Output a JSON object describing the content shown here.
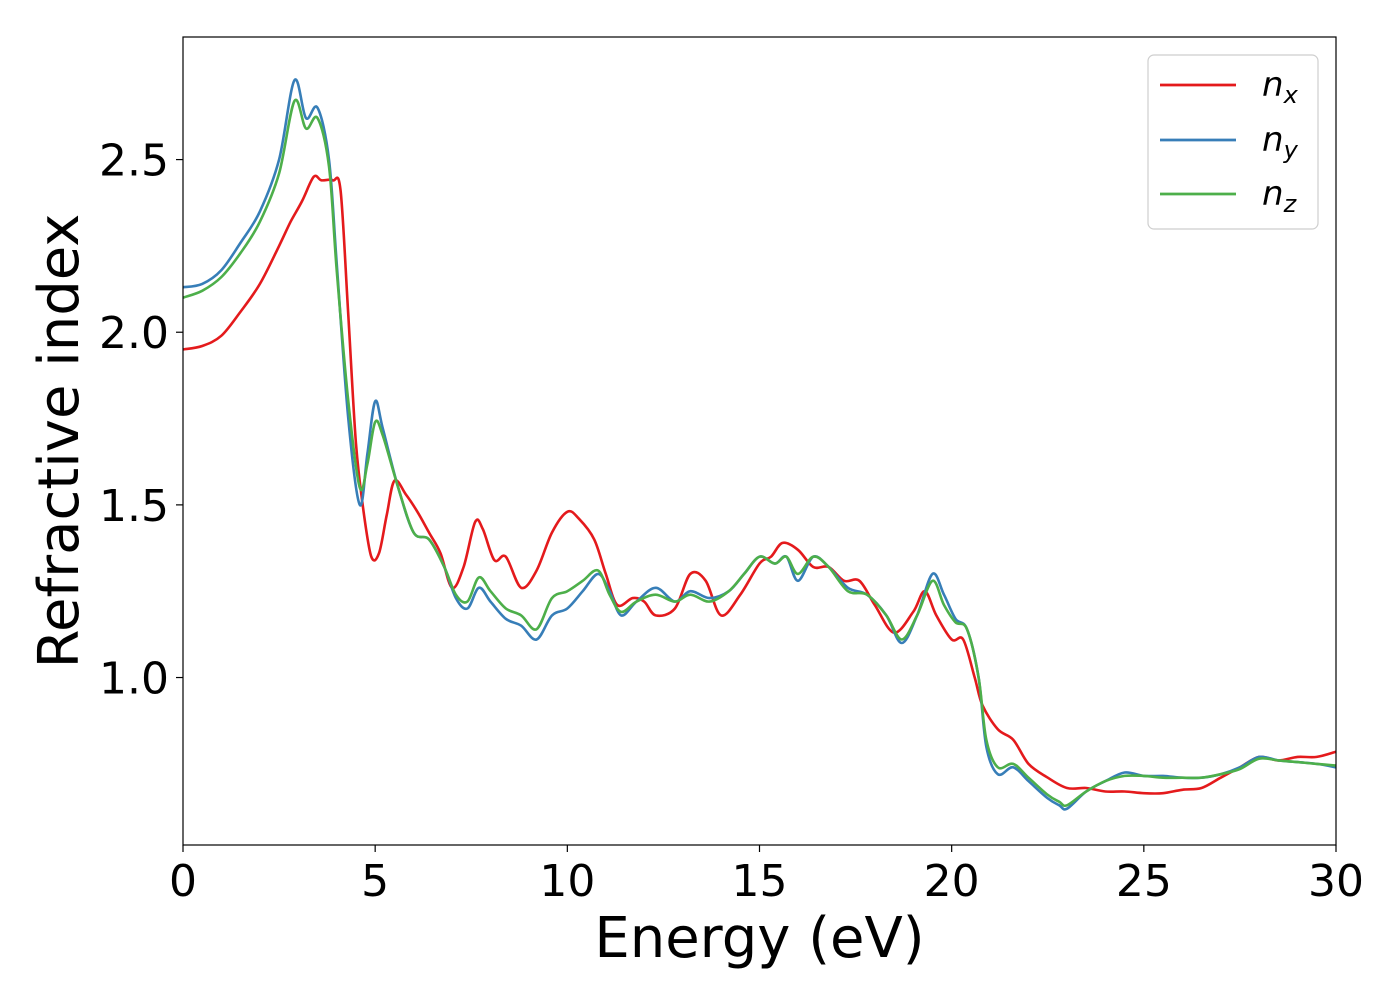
{
  "chart_data": {
    "type": "line",
    "xlabel": "Energy (eV)",
    "ylabel": "Refractive index",
    "xlim": [
      0,
      30
    ],
    "ylim": [
      0.515,
      2.855
    ],
    "x_ticks": [
      "0",
      "5",
      "10",
      "15",
      "20",
      "25",
      "30"
    ],
    "y_ticks": [
      "1.0",
      "1.5",
      "2.0",
      "2.5"
    ],
    "grid": false,
    "legend_position": "top-right",
    "legend": [
      {
        "base": "n",
        "sub": "x",
        "color": "#e41a1c"
      },
      {
        "base": "n",
        "sub": "y",
        "color": "#377eb8"
      },
      {
        "base": "n",
        "sub": "z",
        "color": "#4daf4a"
      }
    ],
    "series": [
      {
        "name": "n_x",
        "color": "#e41a1c",
        "points": [
          [
            0,
            1.95
          ],
          [
            0.5,
            1.96
          ],
          [
            1,
            1.99
          ],
          [
            1.5,
            2.06
          ],
          [
            2,
            2.14
          ],
          [
            2.5,
            2.25
          ],
          [
            2.8,
            2.32
          ],
          [
            3.1,
            2.38
          ],
          [
            3.4,
            2.45
          ],
          [
            3.6,
            2.44
          ],
          [
            3.9,
            2.44
          ],
          [
            4.1,
            2.41
          ],
          [
            4.3,
            2.05
          ],
          [
            4.5,
            1.68
          ],
          [
            4.7,
            1.48
          ],
          [
            4.9,
            1.35
          ],
          [
            5.1,
            1.36
          ],
          [
            5.3,
            1.47
          ],
          [
            5.5,
            1.57
          ],
          [
            5.8,
            1.53
          ],
          [
            6.1,
            1.48
          ],
          [
            6.4,
            1.42
          ],
          [
            6.7,
            1.36
          ],
          [
            7.0,
            1.26
          ],
          [
            7.3,
            1.32
          ],
          [
            7.6,
            1.45
          ],
          [
            7.8,
            1.43
          ],
          [
            8.1,
            1.34
          ],
          [
            8.4,
            1.35
          ],
          [
            8.8,
            1.26
          ],
          [
            9.2,
            1.31
          ],
          [
            9.6,
            1.42
          ],
          [
            10.0,
            1.48
          ],
          [
            10.3,
            1.46
          ],
          [
            10.7,
            1.4
          ],
          [
            11.0,
            1.3
          ],
          [
            11.3,
            1.21
          ],
          [
            11.7,
            1.23
          ],
          [
            12.0,
            1.22
          ],
          [
            12.3,
            1.18
          ],
          [
            12.8,
            1.2
          ],
          [
            13.2,
            1.3
          ],
          [
            13.6,
            1.28
          ],
          [
            14.0,
            1.18
          ],
          [
            14.5,
            1.24
          ],
          [
            15.0,
            1.33
          ],
          [
            15.3,
            1.35
          ],
          [
            15.6,
            1.39
          ],
          [
            16.0,
            1.37
          ],
          [
            16.4,
            1.32
          ],
          [
            16.8,
            1.32
          ],
          [
            17.2,
            1.28
          ],
          [
            17.6,
            1.28
          ],
          [
            18.0,
            1.21
          ],
          [
            18.5,
            1.13
          ],
          [
            19.0,
            1.19
          ],
          [
            19.3,
            1.25
          ],
          [
            19.6,
            1.18
          ],
          [
            20.0,
            1.11
          ],
          [
            20.3,
            1.11
          ],
          [
            20.6,
            1.0
          ],
          [
            20.8,
            0.92
          ],
          [
            21.2,
            0.85
          ],
          [
            21.6,
            0.82
          ],
          [
            22.0,
            0.75
          ],
          [
            22.5,
            0.71
          ],
          [
            23.0,
            0.68
          ],
          [
            23.5,
            0.68
          ],
          [
            24.0,
            0.67
          ],
          [
            24.5,
            0.67
          ],
          [
            25.0,
            0.665
          ],
          [
            25.5,
            0.665
          ],
          [
            26.0,
            0.675
          ],
          [
            26.5,
            0.68
          ],
          [
            27.0,
            0.71
          ],
          [
            27.5,
            0.74
          ],
          [
            28.0,
            0.77
          ],
          [
            28.5,
            0.76
          ],
          [
            29.0,
            0.77
          ],
          [
            29.5,
            0.77
          ],
          [
            30.0,
            0.785
          ]
        ]
      },
      {
        "name": "n_y",
        "color": "#377eb8",
        "points": [
          [
            0,
            2.13
          ],
          [
            0.5,
            2.14
          ],
          [
            1,
            2.18
          ],
          [
            1.5,
            2.26
          ],
          [
            2,
            2.35
          ],
          [
            2.5,
            2.5
          ],
          [
            2.9,
            2.73
          ],
          [
            3.2,
            2.62
          ],
          [
            3.5,
            2.65
          ],
          [
            3.8,
            2.5
          ],
          [
            4.0,
            2.2
          ],
          [
            4.3,
            1.75
          ],
          [
            4.6,
            1.5
          ],
          [
            4.8,
            1.65
          ],
          [
            5.0,
            1.8
          ],
          [
            5.2,
            1.72
          ],
          [
            5.6,
            1.55
          ],
          [
            6.0,
            1.42
          ],
          [
            6.4,
            1.4
          ],
          [
            6.8,
            1.32
          ],
          [
            7.1,
            1.23
          ],
          [
            7.4,
            1.2
          ],
          [
            7.7,
            1.26
          ],
          [
            8.0,
            1.22
          ],
          [
            8.4,
            1.17
          ],
          [
            8.8,
            1.15
          ],
          [
            9.2,
            1.11
          ],
          [
            9.6,
            1.18
          ],
          [
            10.0,
            1.2
          ],
          [
            10.4,
            1.25
          ],
          [
            10.8,
            1.3
          ],
          [
            11.1,
            1.25
          ],
          [
            11.4,
            1.18
          ],
          [
            11.8,
            1.22
          ],
          [
            12.3,
            1.26
          ],
          [
            12.8,
            1.22
          ],
          [
            13.2,
            1.25
          ],
          [
            13.7,
            1.23
          ],
          [
            14.2,
            1.25
          ],
          [
            14.6,
            1.3
          ],
          [
            15.0,
            1.35
          ],
          [
            15.4,
            1.33
          ],
          [
            15.7,
            1.35
          ],
          [
            16.0,
            1.28
          ],
          [
            16.4,
            1.35
          ],
          [
            16.8,
            1.32
          ],
          [
            17.3,
            1.26
          ],
          [
            17.8,
            1.24
          ],
          [
            18.3,
            1.18
          ],
          [
            18.7,
            1.1
          ],
          [
            19.1,
            1.18
          ],
          [
            19.5,
            1.3
          ],
          [
            19.8,
            1.24
          ],
          [
            20.1,
            1.17
          ],
          [
            20.4,
            1.14
          ],
          [
            20.7,
            1.0
          ],
          [
            20.9,
            0.8
          ],
          [
            21.2,
            0.72
          ],
          [
            21.6,
            0.74
          ],
          [
            22.0,
            0.7
          ],
          [
            22.5,
            0.65
          ],
          [
            22.8,
            0.63
          ],
          [
            23.0,
            0.62
          ],
          [
            23.5,
            0.67
          ],
          [
            24.0,
            0.7
          ],
          [
            24.5,
            0.725
          ],
          [
            25.0,
            0.715
          ],
          [
            25.5,
            0.715
          ],
          [
            26.0,
            0.71
          ],
          [
            26.5,
            0.71
          ],
          [
            27.0,
            0.72
          ],
          [
            27.5,
            0.74
          ],
          [
            28.0,
            0.77
          ],
          [
            28.5,
            0.76
          ],
          [
            29.0,
            0.755
          ],
          [
            29.5,
            0.75
          ],
          [
            30.0,
            0.74
          ]
        ]
      },
      {
        "name": "n_z",
        "color": "#4daf4a",
        "points": [
          [
            0,
            2.1
          ],
          [
            0.5,
            2.12
          ],
          [
            1,
            2.16
          ],
          [
            1.5,
            2.23
          ],
          [
            2,
            2.32
          ],
          [
            2.5,
            2.46
          ],
          [
            2.9,
            2.67
          ],
          [
            3.2,
            2.59
          ],
          [
            3.5,
            2.62
          ],
          [
            3.8,
            2.48
          ],
          [
            4.0,
            2.18
          ],
          [
            4.3,
            1.8
          ],
          [
            4.6,
            1.55
          ],
          [
            4.8,
            1.62
          ],
          [
            5.0,
            1.74
          ],
          [
            5.2,
            1.7
          ],
          [
            5.6,
            1.55
          ],
          [
            6.0,
            1.42
          ],
          [
            6.4,
            1.4
          ],
          [
            6.8,
            1.32
          ],
          [
            7.1,
            1.24
          ],
          [
            7.4,
            1.22
          ],
          [
            7.7,
            1.29
          ],
          [
            8.0,
            1.25
          ],
          [
            8.4,
            1.2
          ],
          [
            8.8,
            1.18
          ],
          [
            9.2,
            1.14
          ],
          [
            9.6,
            1.23
          ],
          [
            10.0,
            1.25
          ],
          [
            10.4,
            1.28
          ],
          [
            10.8,
            1.31
          ],
          [
            11.1,
            1.24
          ],
          [
            11.4,
            1.19
          ],
          [
            11.8,
            1.22
          ],
          [
            12.3,
            1.24
          ],
          [
            12.8,
            1.22
          ],
          [
            13.2,
            1.24
          ],
          [
            13.7,
            1.22
          ],
          [
            14.2,
            1.25
          ],
          [
            14.6,
            1.3
          ],
          [
            15.0,
            1.35
          ],
          [
            15.4,
            1.33
          ],
          [
            15.7,
            1.35
          ],
          [
            16.0,
            1.3
          ],
          [
            16.4,
            1.35
          ],
          [
            16.8,
            1.32
          ],
          [
            17.3,
            1.25
          ],
          [
            17.8,
            1.24
          ],
          [
            18.3,
            1.18
          ],
          [
            18.7,
            1.11
          ],
          [
            19.1,
            1.18
          ],
          [
            19.5,
            1.28
          ],
          [
            19.8,
            1.21
          ],
          [
            20.1,
            1.16
          ],
          [
            20.4,
            1.14
          ],
          [
            20.7,
            1.0
          ],
          [
            20.9,
            0.82
          ],
          [
            21.2,
            0.74
          ],
          [
            21.6,
            0.75
          ],
          [
            22.0,
            0.71
          ],
          [
            22.5,
            0.66
          ],
          [
            22.8,
            0.64
          ],
          [
            23.0,
            0.63
          ],
          [
            23.5,
            0.67
          ],
          [
            24.0,
            0.7
          ],
          [
            24.5,
            0.715
          ],
          [
            25.0,
            0.715
          ],
          [
            25.5,
            0.71
          ],
          [
            26.0,
            0.71
          ],
          [
            26.5,
            0.71
          ],
          [
            27.0,
            0.72
          ],
          [
            27.5,
            0.735
          ],
          [
            28.0,
            0.765
          ],
          [
            28.5,
            0.76
          ],
          [
            29.0,
            0.755
          ],
          [
            29.5,
            0.75
          ],
          [
            30.0,
            0.745
          ]
        ]
      }
    ]
  }
}
